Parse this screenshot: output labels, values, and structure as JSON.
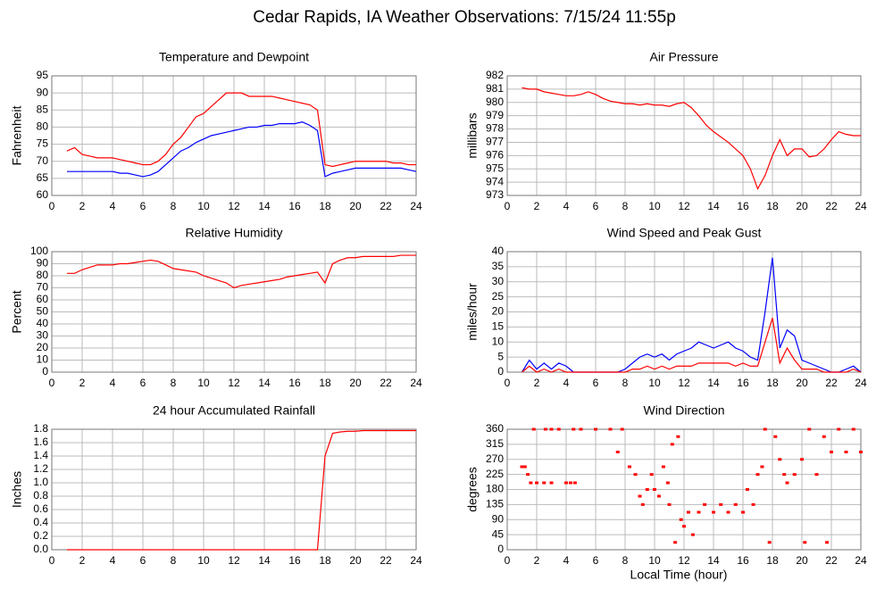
{
  "title": "Cedar Rapids, IA Weather Observations: 7/15/24 11:55p",
  "xlabel": "Local Time (hour)",
  "chart_data": [
    {
      "type": "line",
      "title": "Temperature and Dewpoint",
      "ylabel": "Fahrenheit",
      "x": [
        1,
        1.5,
        2,
        2.5,
        3,
        3.5,
        4,
        4.5,
        5,
        5.5,
        6,
        6.5,
        7,
        7.5,
        8,
        8.5,
        9,
        9.5,
        10,
        10.5,
        11,
        11.5,
        12,
        12.5,
        13,
        13.5,
        14,
        14.5,
        15,
        15.5,
        16,
        16.5,
        17,
        17.5,
        18,
        18.5,
        19,
        19.5,
        20,
        20.5,
        21,
        21.5,
        22,
        22.5,
        23,
        23.5,
        24
      ],
      "series": [
        {
          "color": "#ff0000",
          "values": [
            73,
            74,
            72,
            71.5,
            71,
            71,
            71,
            70.5,
            70,
            69.5,
            69,
            69,
            70,
            72,
            75,
            77,
            80,
            83,
            84,
            86,
            88,
            90,
            90,
            90,
            89,
            89,
            89,
            89,
            88.5,
            88,
            87.5,
            87,
            86.5,
            85,
            69,
            68.5,
            69,
            69.5,
            70,
            70,
            70,
            70,
            70,
            69.5,
            69.5,
            69,
            69
          ]
        },
        {
          "color": "#0000ff",
          "values": [
            67,
            67,
            67,
            67,
            67,
            67,
            67,
            66.5,
            66.5,
            66,
            65.5,
            66,
            67,
            69,
            71,
            73,
            74,
            75.5,
            76.5,
            77.5,
            78,
            78.5,
            79,
            79.5,
            80,
            80,
            80.5,
            80.5,
            81,
            81,
            81,
            81.5,
            80.5,
            79,
            65.5,
            66.5,
            67,
            67.5,
            68,
            68,
            68,
            68,
            68,
            68,
            68,
            67.5,
            67
          ]
        }
      ],
      "xlim": [
        0,
        24
      ],
      "xticks": [
        0,
        2,
        4,
        6,
        8,
        10,
        12,
        14,
        16,
        18,
        20,
        22,
        24
      ],
      "ylim": [
        60,
        95
      ],
      "yticks": [
        60,
        65,
        70,
        75,
        80,
        85,
        90,
        95
      ],
      "grid": true
    },
    {
      "type": "line",
      "title": "Air Pressure",
      "ylabel": "millibars",
      "x": [
        1,
        1.5,
        2,
        2.5,
        3,
        3.5,
        4,
        4.5,
        5,
        5.5,
        6,
        6.5,
        7,
        7.5,
        8,
        8.5,
        9,
        9.5,
        10,
        10.5,
        11,
        11.5,
        12,
        12.5,
        13,
        13.5,
        14,
        14.5,
        15,
        15.5,
        16,
        16.5,
        17,
        17.5,
        18,
        18.5,
        19,
        19.5,
        20,
        20.5,
        21,
        21.5,
        22,
        22.5,
        23,
        23.5,
        24
      ],
      "series": [
        {
          "color": "#ff0000",
          "values": [
            981.1,
            981.0,
            981.0,
            980.8,
            980.7,
            980.6,
            980.5,
            980.5,
            980.6,
            980.8,
            980.6,
            980.3,
            980.1,
            980.0,
            979.9,
            979.9,
            979.8,
            979.9,
            979.8,
            979.8,
            979.7,
            979.9,
            980.0,
            979.6,
            979.0,
            978.3,
            977.8,
            977.4,
            977.0,
            976.5,
            976.0,
            975.0,
            973.5,
            974.5,
            976.0,
            977.2,
            976.0,
            976.5,
            976.5,
            975.9,
            976.0,
            976.5,
            977.2,
            977.8,
            977.6,
            977.5,
            977.5
          ]
        }
      ],
      "xlim": [
        0,
        24
      ],
      "xticks": [
        0,
        2,
        4,
        6,
        8,
        10,
        12,
        14,
        16,
        18,
        20,
        22,
        24
      ],
      "ylim": [
        973,
        982
      ],
      "yticks": [
        973,
        974,
        975,
        976,
        977,
        978,
        979,
        980,
        981,
        982
      ],
      "grid": true
    },
    {
      "type": "line",
      "title": "Relative Humidity",
      "ylabel": "Percent",
      "x": [
        1,
        1.5,
        2,
        2.5,
        3,
        3.5,
        4,
        4.5,
        5,
        5.5,
        6,
        6.5,
        7,
        7.5,
        8,
        8.5,
        9,
        9.5,
        10,
        10.5,
        11,
        11.5,
        12,
        12.5,
        13,
        13.5,
        14,
        14.5,
        15,
        15.5,
        16,
        16.5,
        17,
        17.5,
        18,
        18.5,
        19,
        19.5,
        20,
        20.5,
        21,
        21.5,
        22,
        22.5,
        23,
        23.5,
        24
      ],
      "series": [
        {
          "color": "#ff0000",
          "values": [
            82,
            82,
            85,
            87,
            89,
            89,
            89,
            90,
            90,
            91,
            92,
            93,
            92,
            89,
            86,
            85,
            84,
            83,
            80,
            78,
            76,
            74,
            70,
            72,
            73,
            74,
            75,
            76,
            77,
            79,
            80,
            81,
            82,
            83,
            74,
            90,
            93,
            95,
            95,
            96,
            96,
            96,
            96,
            96,
            97,
            97,
            97
          ]
        }
      ],
      "xlim": [
        0,
        24
      ],
      "xticks": [
        0,
        2,
        4,
        6,
        8,
        10,
        12,
        14,
        16,
        18,
        20,
        22,
        24
      ],
      "ylim": [
        0,
        100
      ],
      "yticks": [
        0,
        10,
        20,
        30,
        40,
        50,
        60,
        70,
        80,
        90,
        100
      ],
      "grid": true
    },
    {
      "type": "line",
      "title": "Wind Speed and Peak Gust",
      "ylabel": "miles/hour",
      "x": [
        1,
        1.5,
        2,
        2.5,
        3,
        3.5,
        4,
        4.5,
        5,
        5.5,
        6,
        6.5,
        7,
        7.5,
        8,
        8.5,
        9,
        9.5,
        10,
        10.5,
        11,
        11.5,
        12,
        12.5,
        13,
        13.5,
        14,
        14.5,
        15,
        15.5,
        16,
        16.5,
        17,
        17.5,
        18,
        18.5,
        19,
        19.5,
        20,
        20.5,
        21,
        21.5,
        22,
        22.5,
        23,
        23.5,
        24
      ],
      "series": [
        {
          "color": "#0000ff",
          "values": [
            0,
            4,
            1,
            3,
            1,
            3,
            2,
            0,
            0,
            0,
            0,
            0,
            0,
            0,
            1,
            3,
            5,
            6,
            5,
            6,
            4,
            6,
            7,
            8,
            10,
            9,
            8,
            9,
            10,
            8,
            7,
            5,
            4,
            20,
            38,
            8,
            14,
            12,
            4,
            3,
            2,
            1,
            0,
            0,
            1,
            2,
            0
          ]
        },
        {
          "color": "#ff0000",
          "values": [
            0,
            2,
            0,
            1,
            0,
            1,
            0,
            0,
            0,
            0,
            0,
            0,
            0,
            0,
            0,
            1,
            1,
            2,
            1,
            2,
            1,
            2,
            2,
            2,
            3,
            3,
            3,
            3,
            3,
            2,
            3,
            2,
            2,
            10,
            18,
            3,
            8,
            4,
            1,
            1,
            1,
            0,
            0,
            0,
            0,
            1,
            0
          ]
        }
      ],
      "xlim": [
        0,
        24
      ],
      "xticks": [
        0,
        2,
        4,
        6,
        8,
        10,
        12,
        14,
        16,
        18,
        20,
        22,
        24
      ],
      "ylim": [
        0,
        40
      ],
      "yticks": [
        0,
        5,
        10,
        15,
        20,
        25,
        30,
        35,
        40
      ],
      "grid": true
    },
    {
      "type": "line",
      "title": "24 hour Accumulated Rainfall",
      "ylabel": "Inches",
      "x": [
        1,
        1.5,
        2,
        2.5,
        3,
        3.5,
        4,
        4.5,
        5,
        5.5,
        6,
        6.5,
        7,
        7.5,
        8,
        8.5,
        9,
        9.5,
        10,
        10.5,
        11,
        11.5,
        12,
        12.5,
        13,
        13.5,
        14,
        14.5,
        15,
        15.5,
        16,
        16.5,
        17,
        17.5,
        18,
        18.5,
        19,
        19.5,
        20,
        20.5,
        21,
        21.5,
        22,
        22.5,
        23,
        23.5,
        24
      ],
      "series": [
        {
          "color": "#ff0000",
          "values": [
            0,
            0,
            0,
            0,
            0,
            0,
            0,
            0,
            0,
            0,
            0,
            0,
            0,
            0,
            0,
            0,
            0,
            0,
            0,
            0,
            0,
            0,
            0,
            0,
            0,
            0,
            0,
            0,
            0,
            0,
            0,
            0,
            0,
            0,
            1.4,
            1.74,
            1.76,
            1.77,
            1.77,
            1.78,
            1.78,
            1.78,
            1.78,
            1.78,
            1.78,
            1.78,
            1.78
          ]
        }
      ],
      "xlim": [
        0,
        24
      ],
      "xticks": [
        0,
        2,
        4,
        6,
        8,
        10,
        12,
        14,
        16,
        18,
        20,
        22,
        24
      ],
      "ylim": [
        0,
        1.8
      ],
      "yticks": [
        {
          "value": 0,
          "label": "0.0"
        },
        0.2,
        0.4,
        0.6,
        0.8,
        {
          "value": 1,
          "label": "1.0"
        },
        1.2,
        1.4,
        1.6,
        1.8
      ],
      "grid": true
    },
    {
      "type": "scatter",
      "title": "Wind Direction",
      "ylabel": "degrees",
      "x": [
        1,
        1.2,
        1.4,
        1.6,
        1.8,
        2,
        2.5,
        2.6,
        3,
        3,
        3.5,
        4,
        4.3,
        4.5,
        4.6,
        5,
        6,
        7,
        7.5,
        7.8,
        8.3,
        8.7,
        9,
        9.2,
        9.5,
        9.8,
        10,
        10.3,
        10.6,
        10.9,
        11,
        11.2,
        11.4,
        11.6,
        11.8,
        12,
        12.3,
        12.6,
        13,
        13.4,
        14,
        14.5,
        15,
        15.5,
        16,
        16.3,
        16.7,
        17,
        17.3,
        17.5,
        17.8,
        18.2,
        18.5,
        18.8,
        19,
        19.5,
        20,
        20.2,
        20.5,
        21,
        21.5,
        21.7,
        22,
        22.5,
        23,
        23.5,
        24
      ],
      "series": [
        {
          "color": "#ff0000",
          "values": [
            248,
            248,
            225,
            200,
            360,
            200,
            200,
            360,
            200,
            360,
            360,
            200,
            200,
            360,
            200,
            360,
            360,
            360,
            292,
            360,
            248,
            225,
            160,
            135,
            180,
            225,
            180,
            160,
            248,
            200,
            135,
            315,
            22,
            338,
            90,
            70,
            112,
            45,
            112,
            135,
            112,
            135,
            112,
            135,
            112,
            180,
            135,
            225,
            248,
            360,
            22,
            338,
            270,
            225,
            200,
            225,
            270,
            22,
            360,
            225,
            338,
            22,
            292,
            360,
            292,
            360,
            292
          ]
        }
      ],
      "xlim": [
        0,
        24
      ],
      "xticks": [
        0,
        2,
        4,
        6,
        8,
        10,
        12,
        14,
        16,
        18,
        20,
        22,
        24
      ],
      "ylim": [
        0,
        360
      ],
      "yticks": [
        0,
        45,
        90,
        135,
        180,
        225,
        270,
        315,
        360
      ],
      "grid": true
    }
  ]
}
